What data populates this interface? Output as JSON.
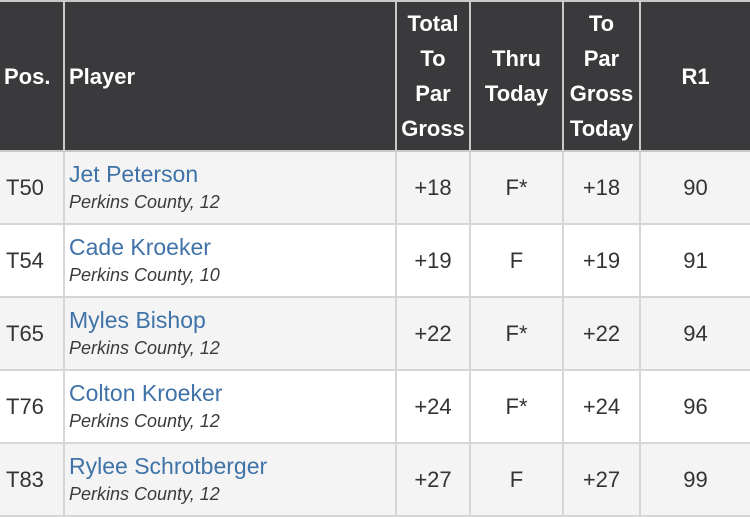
{
  "headers": {
    "pos": "Pos.",
    "player": "Player",
    "total": [
      "Total",
      "To",
      "Par",
      "Gross"
    ],
    "thru": [
      "Thru",
      "Today"
    ],
    "today": [
      "To",
      "Par",
      "Gross",
      "Today"
    ],
    "r1": "R1"
  },
  "rows": [
    {
      "pos": "T50",
      "name": "Jet Peterson",
      "team": "Perkins County, 12",
      "total": "+18",
      "thru": "F*",
      "today": "+18",
      "r1": "90"
    },
    {
      "pos": "T54",
      "name": "Cade Kroeker",
      "team": "Perkins County, 10",
      "total": "+19",
      "thru": "F",
      "today": "+19",
      "r1": "91"
    },
    {
      "pos": "T65",
      "name": "Myles Bishop",
      "team": "Perkins County, 12",
      "total": "+22",
      "thru": "F*",
      "today": "+22",
      "r1": "94"
    },
    {
      "pos": "T76",
      "name": "Colton Kroeker",
      "team": "Perkins County, 12",
      "total": "+24",
      "thru": "F*",
      "today": "+24",
      "r1": "96"
    },
    {
      "pos": "T83",
      "name": "Rylee Schrotberger",
      "team": "Perkins County, 12",
      "total": "+27",
      "thru": "F",
      "today": "+27",
      "r1": "99"
    }
  ]
}
